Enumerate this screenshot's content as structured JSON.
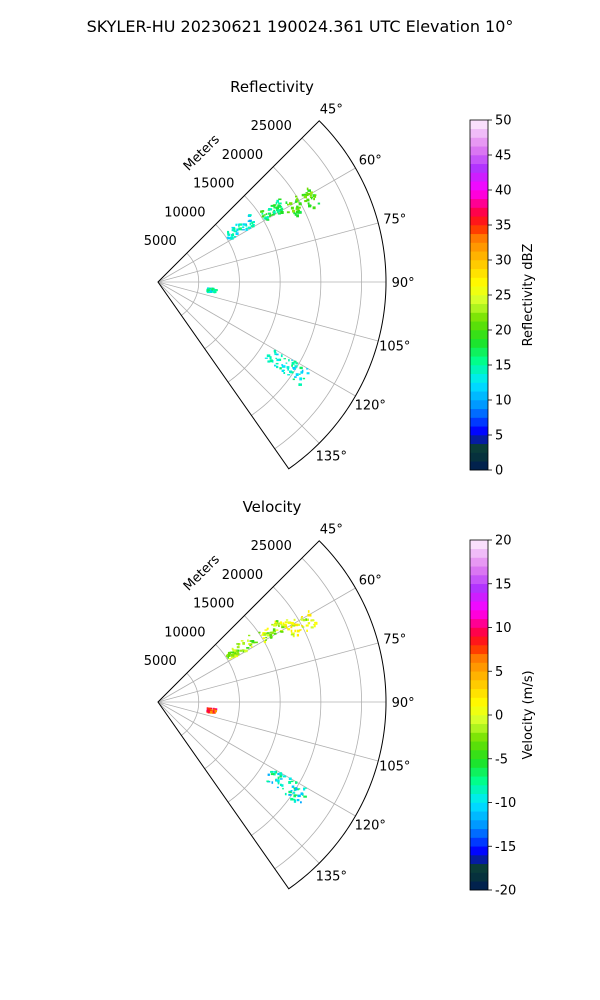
{
  "figure": {
    "title": "SKYLER-HU  20230621  190024.361 UTC Elevation 10°"
  },
  "chart_data": [
    {
      "type": "heatmap",
      "projection": "polar-sector",
      "title": "Reflectivity",
      "range_label": "Meters",
      "range_ticks": [
        5000,
        10000,
        15000,
        20000,
        25000
      ],
      "range_limit": [
        0,
        28000
      ],
      "azimuth_range": [
        45,
        145
      ],
      "azimuth_ticks": [
        45,
        60,
        75,
        90,
        105,
        120,
        135
      ],
      "azimuth_tick_labels": [
        "45°",
        "60°",
        "75°",
        "90°",
        "105°",
        "120°",
        "135°"
      ],
      "grid": true,
      "colorbar": {
        "label": "Reflectivity dBZ",
        "min": 0,
        "max": 50,
        "ticks": [
          0,
          5,
          10,
          15,
          20,
          25,
          30,
          35,
          40,
          45,
          50
        ]
      },
      "regions": [
        {
          "az": [
            57,
            64
          ],
          "range": [
            18000,
            22000
          ],
          "value": 20
        },
        {
          "az": [
            55,
            60
          ],
          "range": [
            15000,
            18000
          ],
          "value": 17
        },
        {
          "az": [
            53,
            59
          ],
          "range": [
            10000,
            14000
          ],
          "value": 13
        },
        {
          "az": [
            120,
            126
          ],
          "range": [
            16000,
            21500
          ],
          "value": 14
        },
        {
          "az": [
            96,
            100
          ],
          "range": [
            6000,
            7000
          ],
          "value": 14
        }
      ]
    },
    {
      "type": "heatmap",
      "projection": "polar-sector",
      "title": "Velocity",
      "range_label": "Meters",
      "range_ticks": [
        5000,
        10000,
        15000,
        20000,
        25000
      ],
      "range_limit": [
        0,
        28000
      ],
      "azimuth_range": [
        45,
        145
      ],
      "azimuth_ticks": [
        45,
        60,
        75,
        90,
        105,
        120,
        135
      ],
      "azimuth_tick_labels": [
        "45°",
        "60°",
        "75°",
        "90°",
        "105°",
        "120°",
        "135°"
      ],
      "grid": true,
      "colorbar": {
        "label": "Velocity (m/s)",
        "min": -20,
        "max": 20,
        "ticks": [
          -20,
          -15,
          -10,
          -5,
          0,
          5,
          10,
          15,
          20
        ]
      },
      "regions": [
        {
          "az": [
            57,
            64
          ],
          "range": [
            18000,
            22000
          ],
          "value": 0
        },
        {
          "az": [
            55,
            60
          ],
          "range": [
            15000,
            18000
          ],
          "value": -1
        },
        {
          "az": [
            53,
            59
          ],
          "range": [
            10000,
            14000
          ],
          "value": -2
        },
        {
          "az": [
            120,
            126
          ],
          "range": [
            16000,
            21500
          ],
          "value": -9
        },
        {
          "az": [
            96,
            100
          ],
          "range": [
            6000,
            7000
          ],
          "value": 8
        }
      ]
    }
  ]
}
